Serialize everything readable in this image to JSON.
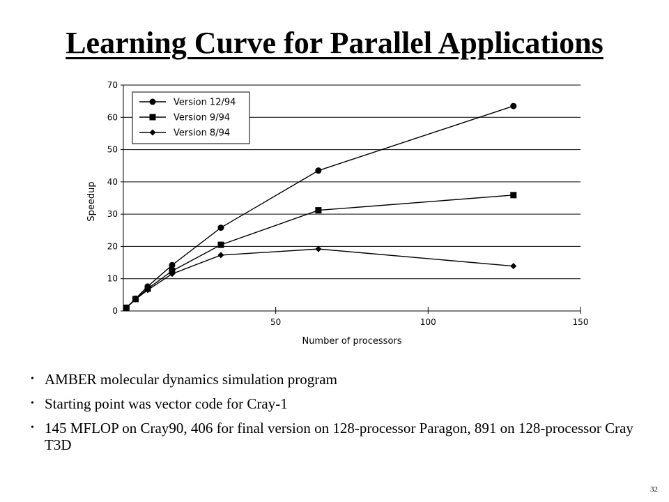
{
  "slide": {
    "title": "Learning Curve for Parallel Applications",
    "bullets": [
      "AMBER molecular dynamics simulation program",
      "Starting point was vector code for Cray-1",
      "145 MFLOP on Cray90, 406 for final version on 128-processor Paragon, 891 on 128-processor Cray T3D"
    ],
    "page_number": "32"
  },
  "chart_data": {
    "type": "line",
    "title": "",
    "xlabel": "Number of processors",
    "ylabel": "Speedup",
    "xlim": [
      0,
      150
    ],
    "ylim": [
      0,
      70
    ],
    "x_ticks": [
      "50",
      "100",
      "150"
    ],
    "x_tick_values": [
      50,
      100,
      150
    ],
    "y_ticks": [
      "0",
      "10",
      "20",
      "30",
      "40",
      "50",
      "60",
      "70"
    ],
    "y_tick_values": [
      0,
      10,
      20,
      30,
      40,
      50,
      60,
      70
    ],
    "grid": "horizontal",
    "legend_position": "top-left",
    "series": [
      {
        "name": "Version 12/94",
        "marker": "circle",
        "x": [
          1,
          4,
          8,
          16,
          32,
          64,
          128
        ],
        "y": [
          1,
          3.8,
          7.6,
          14.2,
          25.8,
          43.5,
          63.5
        ]
      },
      {
        "name": "Version 9/94",
        "marker": "square",
        "x": [
          1,
          4,
          8,
          16,
          32,
          64,
          128
        ],
        "y": [
          1,
          3.7,
          6.9,
          12.4,
          20.5,
          31.2,
          35.9
        ]
      },
      {
        "name": "Version 8/94",
        "marker": "diamond",
        "x": [
          1,
          4,
          8,
          16,
          32,
          64,
          128
        ],
        "y": [
          1,
          3.6,
          6.5,
          11.5,
          17.3,
          19.2,
          13.9
        ]
      }
    ]
  },
  "colors": {
    "line": "#000000",
    "grid": "#000000",
    "background": "#ffffff"
  }
}
